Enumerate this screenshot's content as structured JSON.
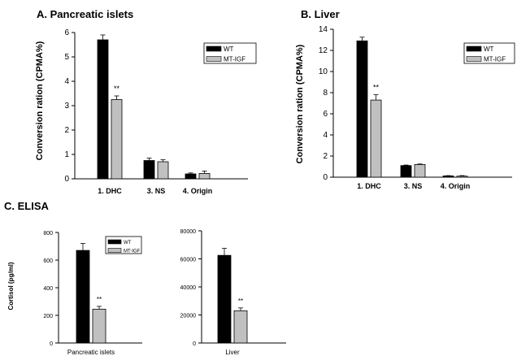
{
  "chart_data": [
    {
      "panel_title": "A. Pancreatic islets",
      "type": "bar",
      "ylabel": "Conversion ration (CPMA%)",
      "ylim": [
        0,
        6
      ],
      "yticks": [
        "0",
        "1",
        "2",
        "3",
        "4",
        "5",
        "6"
      ],
      "categories": [
        "1. DHC",
        "3. NS",
        "4. Origin"
      ],
      "series": [
        {
          "name": "WT",
          "color": "#000000",
          "values": [
            5.7,
            0.75,
            0.2
          ],
          "errors": [
            0.2,
            0.1,
            0.04
          ]
        },
        {
          "name": "MT-IGF",
          "color": "#c0c0c0",
          "values": [
            3.25,
            0.7,
            0.22
          ],
          "errors": [
            0.15,
            0.08,
            0.1
          ]
        }
      ],
      "annotations": [
        {
          "text": "**",
          "category": "1. DHC",
          "series": "MT-IGF"
        }
      ],
      "legend": "top-right"
    },
    {
      "panel_title": "B. Liver",
      "type": "bar",
      "ylabel": "Conversion ration (CPMA%)",
      "ylim": [
        0,
        14
      ],
      "yticks": [
        "0",
        "2",
        "4",
        "6",
        "8",
        "10",
        "12",
        "14"
      ],
      "categories": [
        "1. DHC",
        "3. NS",
        "4. Origin"
      ],
      "series": [
        {
          "name": "WT",
          "color": "#000000",
          "values": [
            12.9,
            1.1,
            0.12
          ],
          "errors": [
            0.35,
            0.05,
            0.03
          ]
        },
        {
          "name": "MT-IGF",
          "color": "#c0c0c0",
          "values": [
            7.3,
            1.2,
            0.1
          ],
          "errors": [
            0.5,
            0.05,
            0.05
          ]
        }
      ],
      "annotations": [
        {
          "text": "**",
          "category": "1. DHC",
          "series": "MT-IGF"
        }
      ],
      "legend": "top-right"
    },
    {
      "panel_title": "C. ELISA",
      "type": "bar",
      "ylabel": "Cortisol (pg/ml)",
      "ylim": [
        0,
        800
      ],
      "yticks": [
        "0",
        "200",
        "400",
        "600",
        "800"
      ],
      "categories": [
        "Pancreatic islets"
      ],
      "series": [
        {
          "name": "WT",
          "color": "#000000",
          "values": [
            670
          ],
          "errors": [
            50
          ]
        },
        {
          "name": "MT-IGF",
          "color": "#c0c0c0",
          "values": [
            245
          ],
          "errors": [
            20
          ]
        }
      ],
      "annotations": [
        {
          "text": "**",
          "category": "Pancreatic islets",
          "series": "MT-IGF"
        }
      ],
      "legend": "top-right"
    },
    {
      "panel_title": "",
      "type": "bar",
      "ylabel": "",
      "ylim": [
        0,
        80000
      ],
      "yticks": [
        "0",
        "20000",
        "40000",
        "60000",
        "80000"
      ],
      "categories": [
        "Liver"
      ],
      "series": [
        {
          "name": "WT",
          "color": "#000000",
          "values": [
            62500
          ],
          "errors": [
            5000
          ]
        },
        {
          "name": "MT-IGF",
          "color": "#c0c0c0",
          "values": [
            23000
          ],
          "errors": [
            2000
          ]
        }
      ],
      "annotations": [
        {
          "text": "**",
          "category": "Liver",
          "series": "MT-IGF"
        }
      ],
      "legend": "none"
    }
  ]
}
